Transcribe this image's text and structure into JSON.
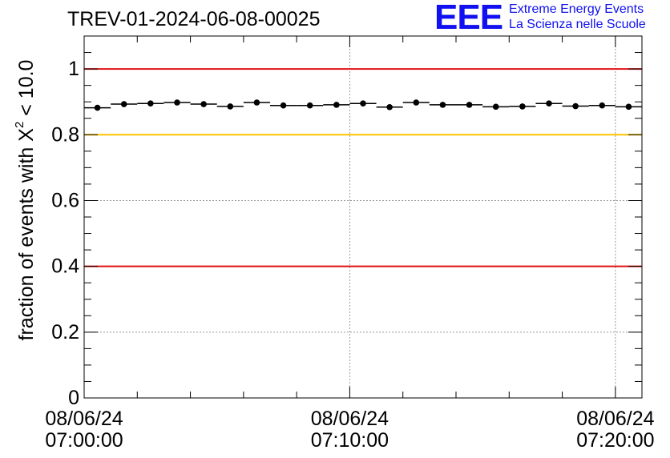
{
  "title": "TREV-01-2024-06-08-00025",
  "logo": {
    "mark": "EEE",
    "line1": "Extreme Energy Events",
    "line2": "La Scienza nelle Scuole"
  },
  "colors": {
    "upper_threshold": "#e01010",
    "lower_threshold": "#e01010",
    "warning_threshold": "#ffc400",
    "points": "#000000",
    "grid": "#999999",
    "logo": "#1010f0"
  },
  "chart_data": {
    "type": "scatter",
    "title": "TREV-01-2024-06-08-00025",
    "ylabel": {
      "prefix": "fraction of events with ",
      "symbol": "X",
      "superscript": "2",
      "suffix": " < 10.0"
    },
    "xlabel": "",
    "ylim": [
      0,
      1.1
    ],
    "xlim_minutes": [
      0,
      21
    ],
    "grid": true,
    "x_minutes": [
      0.5,
      1.5,
      2.5,
      3.5,
      4.5,
      5.5,
      6.5,
      7.5,
      8.5,
      9.5,
      10.5,
      11.5,
      12.5,
      13.5,
      14.5,
      15.5,
      16.5,
      17.5,
      18.5,
      19.5,
      20.5
    ],
    "values": [
      0.882,
      0.893,
      0.895,
      0.898,
      0.893,
      0.886,
      0.898,
      0.889,
      0.889,
      0.891,
      0.895,
      0.884,
      0.898,
      0.891,
      0.891,
      0.885,
      0.886,
      0.895,
      0.887,
      0.889,
      0.885
    ],
    "x_bin_width_minutes": 1,
    "reference_lines": [
      {
        "y": 1.0,
        "color": "#e01010"
      },
      {
        "y": 0.8,
        "color": "#ffc400"
      },
      {
        "y": 0.4,
        "color": "#e01010"
      }
    ],
    "y_ticks": [
      {
        "value": 0,
        "label": "0"
      },
      {
        "value": 0.2,
        "label": "0.2"
      },
      {
        "value": 0.4,
        "label": "0.4"
      },
      {
        "value": 0.6,
        "label": "0.6"
      },
      {
        "value": 0.8,
        "label": "0.8"
      },
      {
        "value": 1.0,
        "label": "1"
      }
    ],
    "x_ticks": [
      {
        "minutes": 0,
        "date": "08/06/24",
        "time": "07:00:00"
      },
      {
        "minutes": 10,
        "date": "08/06/24",
        "time": "07:10:00"
      },
      {
        "minutes": 20,
        "date": "08/06/24",
        "time": "07:20:00"
      }
    ]
  }
}
